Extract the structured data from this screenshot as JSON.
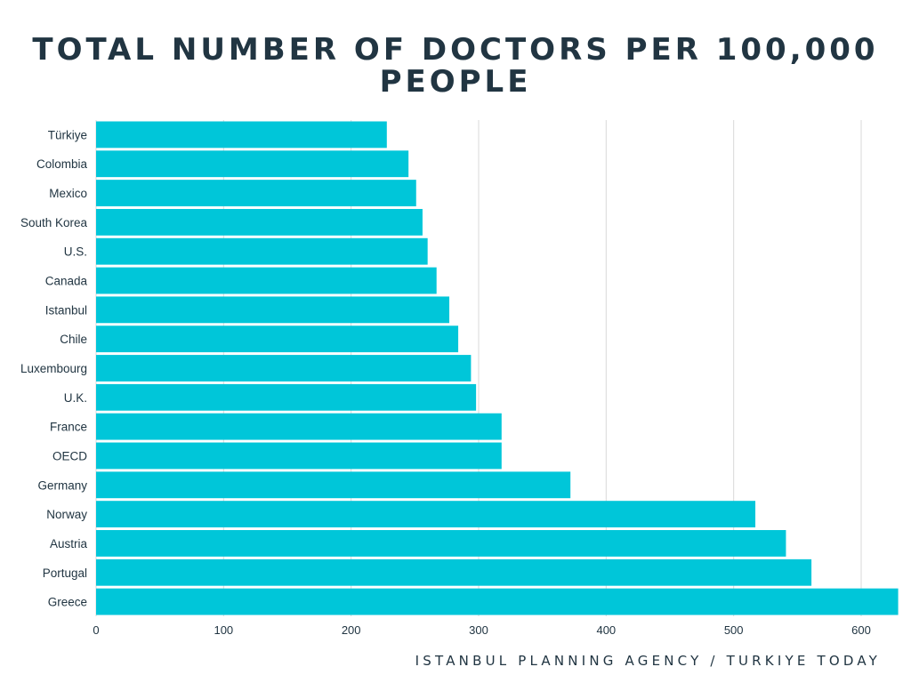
{
  "title_line1": "TOTAL NUMBER OF DOCTORS PER 100,000",
  "title_line2": "PEOPLE",
  "source": "ISTANBUL PLANNING AGENCY / TURKIYE TODAY",
  "chart_data": {
    "type": "bar",
    "orientation": "horizontal",
    "title": "TOTAL NUMBER OF DOCTORS PER 100,000 PEOPLE",
    "categories": [
      "Türkiye",
      "Colombia",
      "Mexico",
      "South Korea",
      "U.S.",
      "Canada",
      "Istanbul",
      "Chile",
      "Luxembourg",
      "U.K.",
      "France",
      "OECD",
      "Germany",
      "Norway",
      "Austria",
      "Portugal",
      "Greece"
    ],
    "values": [
      228,
      245,
      251,
      256,
      260,
      267,
      277,
      284,
      294,
      298,
      318,
      318,
      372,
      517,
      541,
      561,
      629
    ],
    "xlim": [
      0,
      630
    ],
    "xticks": [
      0,
      100,
      200,
      300,
      400,
      500,
      600
    ],
    "grid": true,
    "bar_color": "#00c6d9",
    "grid_color": "#d9d9d9",
    "text_color": "#213542"
  }
}
